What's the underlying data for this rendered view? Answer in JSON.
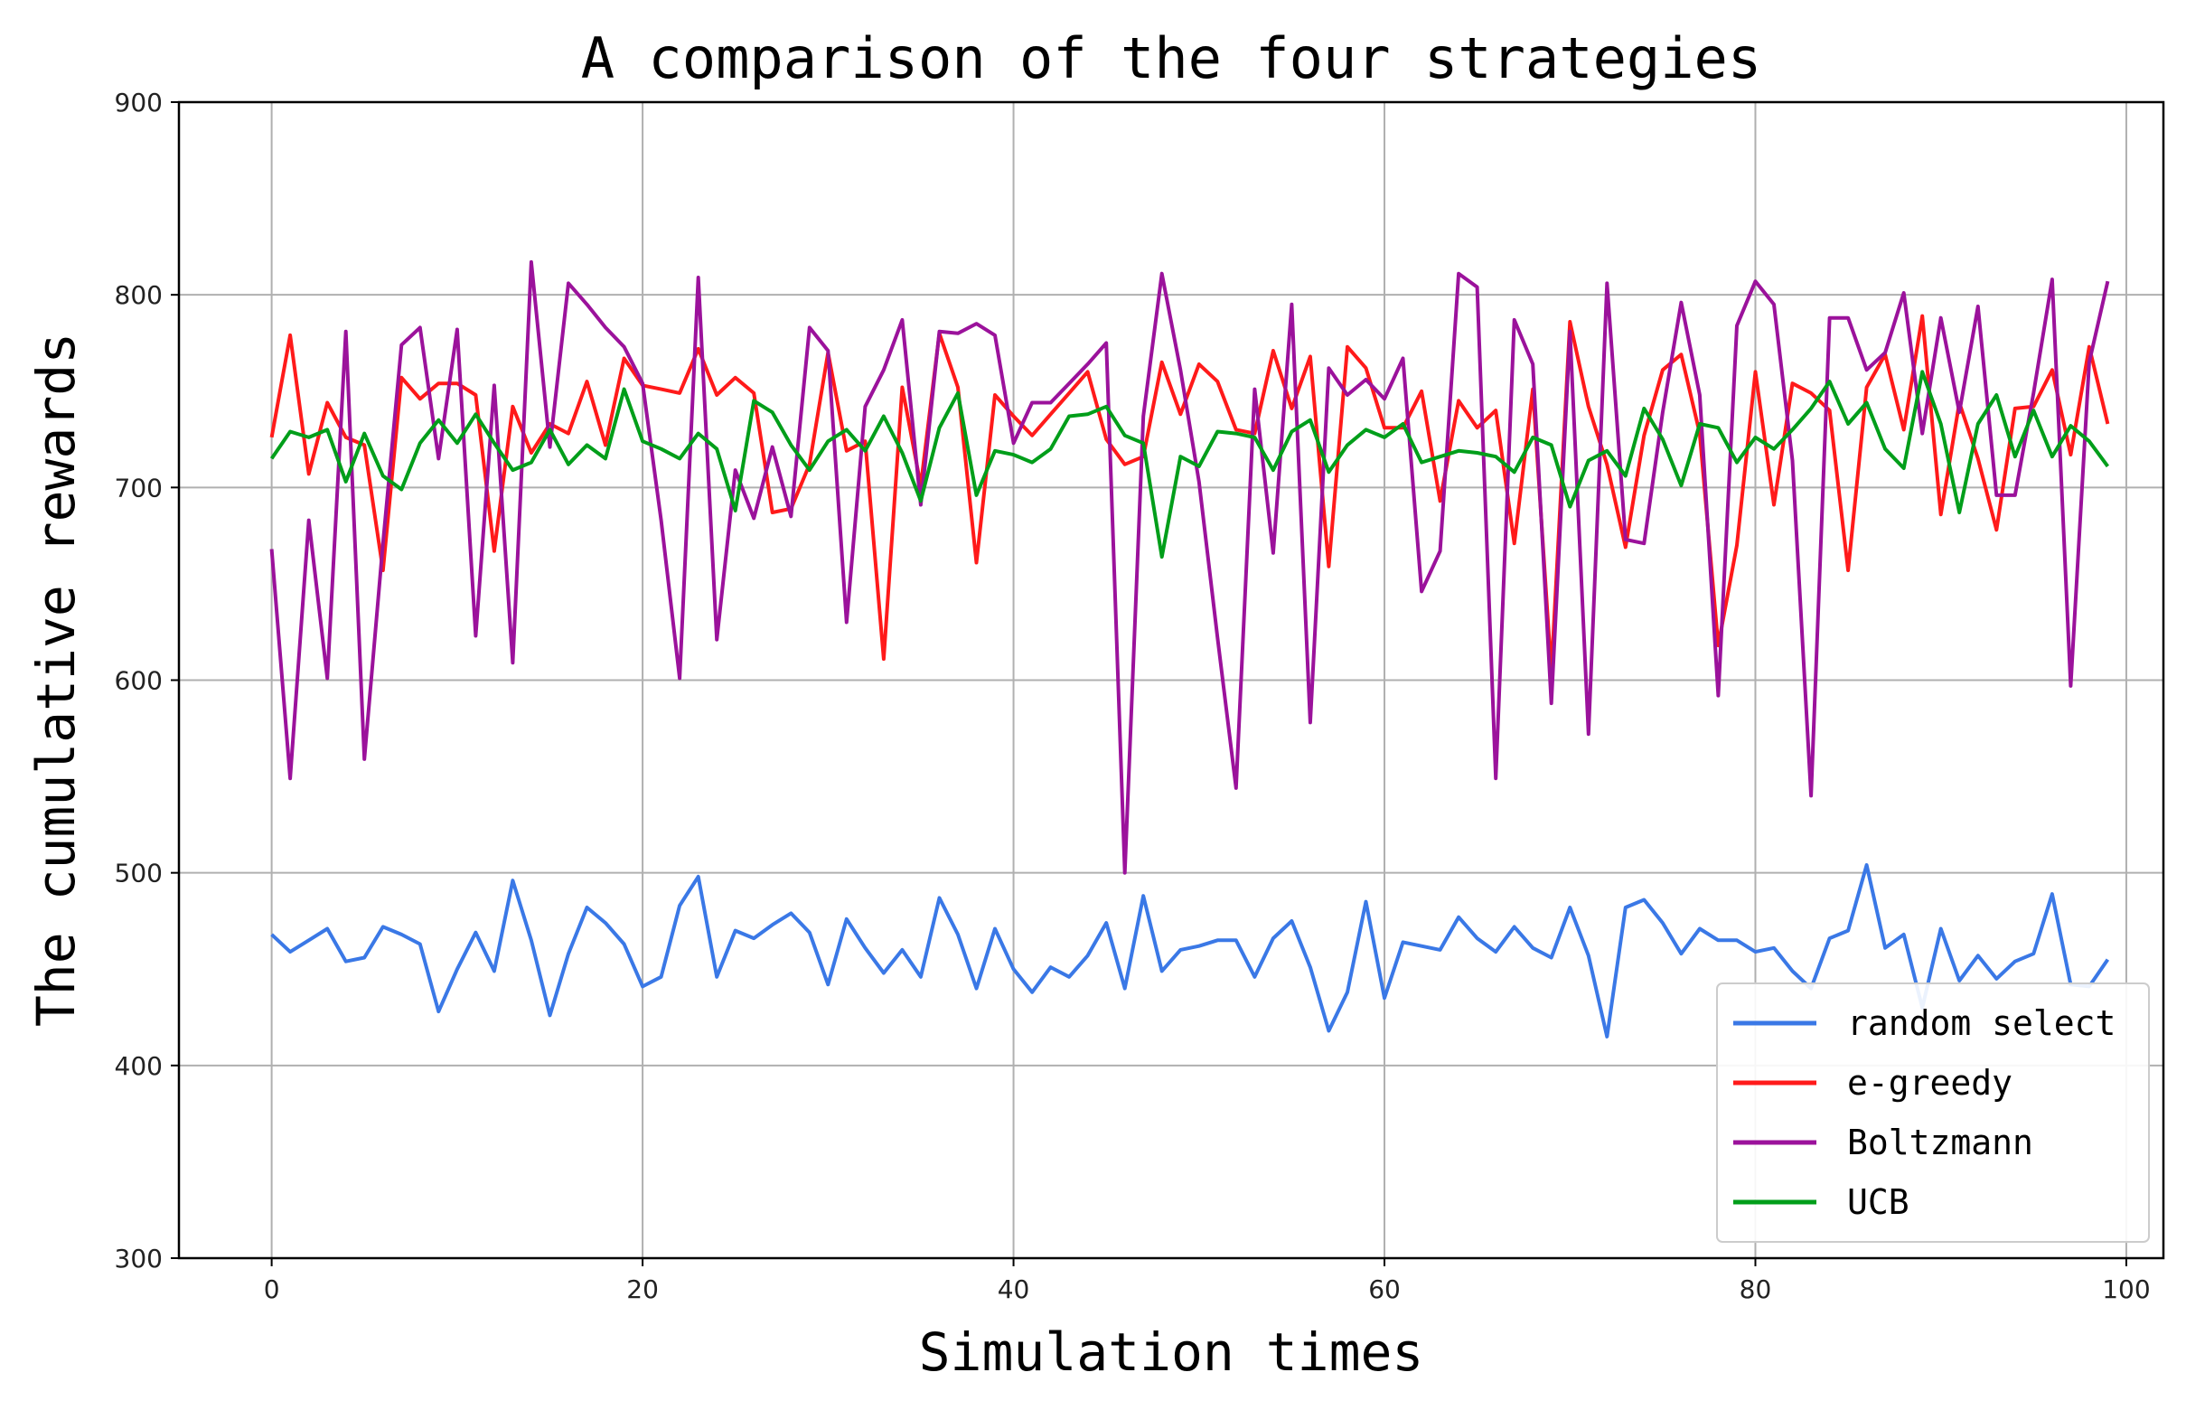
{
  "chart_data": {
    "type": "line",
    "title": "A comparison of the four strategies",
    "xlabel": "Simulation times",
    "ylabel": "The cumulative rewards",
    "xlim": [
      -5,
      102
    ],
    "ylim": [
      300,
      900
    ],
    "xticks": [
      0,
      20,
      40,
      60,
      80,
      100
    ],
    "yticks": [
      300,
      400,
      500,
      600,
      700,
      800,
      900
    ],
    "grid": true,
    "legend_position": "lower-right",
    "series": [
      {
        "name": "random select",
        "color": "#3a78e6",
        "y": [
          468,
          459,
          465,
          471,
          454,
          456,
          472,
          468,
          463,
          428,
          450,
          469,
          449,
          496,
          465,
          426,
          458,
          482,
          474,
          463,
          441,
          446,
          483,
          498,
          446,
          470,
          466,
          473,
          479,
          469,
          442,
          476,
          461,
          448,
          460,
          446,
          487,
          468,
          440,
          471,
          450,
          438,
          451,
          446,
          457,
          474,
          440,
          488,
          449,
          460,
          462,
          465,
          465,
          446,
          466,
          475,
          451,
          418,
          438,
          485,
          435,
          464,
          462,
          460,
          477,
          466,
          459,
          472,
          461,
          456,
          482,
          457,
          415,
          482,
          486,
          474,
          458,
          471,
          465,
          465,
          459,
          461,
          449,
          440,
          466,
          470,
          504,
          461,
          468,
          430,
          471,
          444,
          457,
          445,
          454,
          458,
          489,
          442,
          441,
          455
        ]
      },
      {
        "name": "e-greedy",
        "color": "#ff1a1a",
        "y": [
          726,
          779,
          707,
          744,
          726,
          722,
          657,
          757,
          746,
          754,
          754,
          748,
          667,
          742,
          718,
          733,
          728,
          755,
          722,
          767,
          753,
          751,
          749,
          772,
          748,
          757,
          749,
          687,
          689,
          712,
          770,
          719,
          724,
          611,
          752,
          701,
          780,
          752,
          661,
          748,
          737,
          727,
          738,
          749,
          760,
          725,
          712,
          716,
          765,
          738,
          764,
          755,
          730,
          728,
          771,
          741,
          768,
          659,
          773,
          762,
          731,
          731,
          750,
          693,
          745,
          731,
          740,
          671,
          751,
          604,
          786,
          742,
          712,
          669,
          727,
          761,
          769,
          728,
          618,
          670,
          760,
          691,
          754,
          749,
          740,
          657,
          752,
          769,
          730,
          789,
          686,
          744,
          715,
          678,
          741,
          742,
          761,
          717,
          773,
          733
        ]
      },
      {
        "name": "Boltzmann",
        "color": "#9b129b",
        "y": [
          668,
          549,
          683,
          601,
          781,
          559,
          671,
          774,
          783,
          715,
          782,
          623,
          753,
          609,
          817,
          721,
          806,
          795,
          783,
          773,
          754,
          683,
          601,
          809,
          621,
          709,
          684,
          721,
          685,
          783,
          771,
          630,
          742,
          761,
          787,
          691,
          781,
          780,
          785,
          779,
          723,
          744,
          744,
          754,
          764,
          775,
          500,
          737,
          811,
          761,
          703,
          622,
          544,
          751,
          666,
          795,
          578,
          762,
          748,
          756,
          746,
          767,
          646,
          667,
          811,
          804,
          549,
          787,
          764,
          588,
          781,
          572,
          806,
          673,
          671,
          739,
          796,
          748,
          592,
          784,
          807,
          795,
          714,
          540,
          788,
          788,
          761,
          770,
          801,
          728,
          788,
          739,
          794,
          696,
          696,
          749,
          808,
          597,
          765,
          807
        ]
      },
      {
        "name": "UCB",
        "color": "#009e1a",
        "y": [
          715,
          729,
          726,
          730,
          703,
          728,
          706,
          699,
          723,
          735,
          723,
          738,
          723,
          709,
          713,
          730,
          712,
          722,
          715,
          751,
          724,
          720,
          715,
          728,
          720,
          688,
          745,
          739,
          722,
          709,
          724,
          730,
          719,
          737,
          718,
          693,
          731,
          749,
          696,
          719,
          717,
          713,
          720,
          737,
          738,
          742,
          727,
          723,
          664,
          716,
          711,
          729,
          728,
          726,
          709,
          729,
          735,
          708,
          722,
          730,
          726,
          733,
          713,
          716,
          719,
          718,
          716,
          708,
          726,
          722,
          690,
          714,
          719,
          706,
          741,
          725,
          701,
          733,
          731,
          713,
          726,
          720,
          730,
          741,
          755,
          733,
          744,
          720,
          710,
          760,
          733,
          687,
          733,
          748,
          716,
          740,
          716,
          732,
          724,
          711
        ]
      }
    ]
  }
}
